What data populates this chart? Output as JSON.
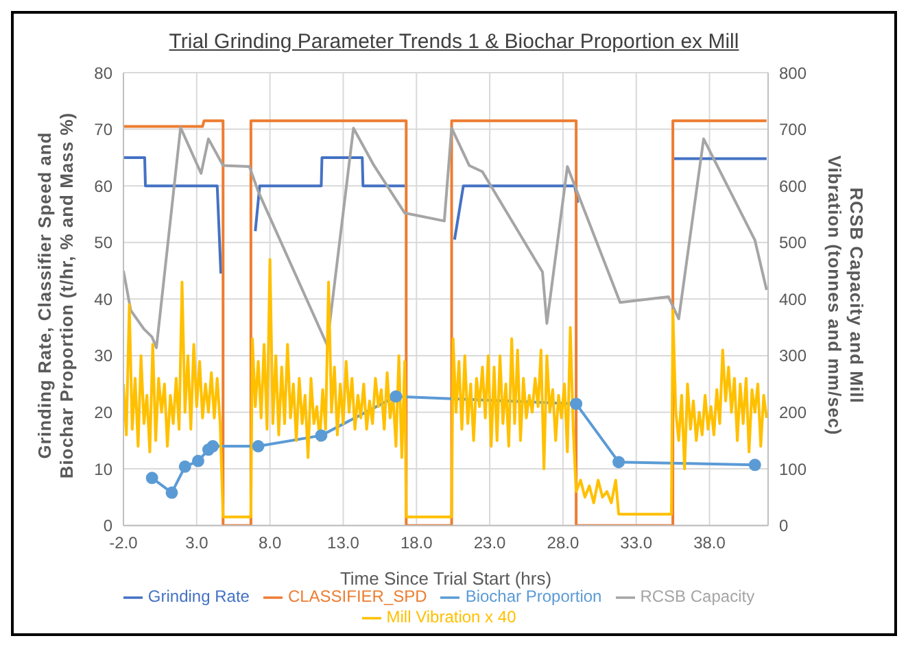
{
  "chart_data": {
    "type": "line",
    "title": "Trial Grinding Parameter Trends 1 & Biochar Proportion ex Mill",
    "xlabel": "Time Since Trial Start (hrs)",
    "ylabel": "Grinding Rate, Classifier Speed and Biochar Proportion (t/hr, % and Mass %)",
    "y2label": "RCSB Capacity and Mill Vibration (tonnes and mm/sec)",
    "xlim": [
      -2,
      42
    ],
    "xticks": [
      {
        "value": -2,
        "label": "-2.0"
      },
      {
        "value": 3,
        "label": "3.0"
      },
      {
        "value": 8,
        "label": "8.0"
      },
      {
        "value": 13,
        "label": "13.0"
      },
      {
        "value": 18,
        "label": "18.0"
      },
      {
        "value": 23,
        "label": "23.0"
      },
      {
        "value": 28,
        "label": "28.0"
      },
      {
        "value": 33,
        "label": "33.0"
      },
      {
        "value": 38,
        "label": "38.0"
      }
    ],
    "ylim": [
      0,
      80
    ],
    "yticks": [
      0,
      10,
      20,
      30,
      40,
      50,
      60,
      70,
      80
    ],
    "y2lim": [
      0,
      800
    ],
    "y2ticks": [
      0,
      100,
      200,
      300,
      400,
      500,
      600,
      700,
      800
    ],
    "grid": true,
    "legend": "bottom",
    "marker": "none",
    "line_style": "solid",
    "series": [
      {
        "name": "Grinding Rate",
        "color": "#4472c4",
        "x": [
          -2,
          -0.55,
          -0.5,
          4.4,
          4.65,
          5.8,
          7.0,
          7.3,
          11.5,
          11.55,
          14.3,
          14.35,
          17.2,
          18.8,
          20.6,
          21.2,
          28.8,
          29.0,
          32,
          35.5,
          41.9
        ],
        "values": [
          65,
          65,
          60,
          60,
          44.5,
          null,
          52,
          60,
          60,
          65,
          65,
          60,
          60,
          null,
          50.5,
          60,
          60,
          57,
          null,
          64.8,
          64.8
        ]
      },
      {
        "name": "CLASSIFIER_SPD",
        "color": "#ed7d31",
        "x": [
          -2,
          3.4,
          3.5,
          4.8,
          4.8,
          6.7,
          6.7,
          17.3,
          17.3,
          20.4,
          20.4,
          28.9,
          28.9,
          35.5,
          35.5,
          41.9
        ],
        "values": [
          70.5,
          70.5,
          71.5,
          71.5,
          0,
          0,
          71.5,
          71.5,
          0,
          0,
          71.5,
          71.5,
          0,
          0,
          71.5,
          71.5
        ]
      },
      {
        "name": "Biochar Proportion",
        "color": "#5b9bd5",
        "marker": "circle",
        "x": [
          -0.05,
          1.3,
          2.2,
          3.1,
          3.8,
          4.1,
          7.2,
          11.5,
          16.6,
          28.9,
          31.8,
          41.1
        ],
        "values": [
          8.4,
          5.8,
          10.4,
          11.4,
          13.4,
          14.0,
          14.0,
          15.9,
          22.8,
          21.5,
          11.2,
          10.7
        ]
      },
      {
        "name": "RCSB Capacity",
        "color": "#a5a5a5",
        "axis": "y2",
        "x": [
          -2,
          -1.5,
          -0.6,
          -0.05,
          0.25,
          1.9,
          3.3,
          3.8,
          4.8,
          6.6,
          7.2,
          11.9,
          13.7,
          15.1,
          17.2,
          19.9,
          20.4,
          21.6,
          22.5,
          26.6,
          26.9,
          28.3,
          31.9,
          35.2,
          35.9,
          37.6,
          41.1,
          41.9
        ],
        "values": [
          450,
          380,
          347,
          333,
          314,
          703,
          622,
          683,
          636,
          634,
          590,
          319,
          702,
          636,
          552,
          538,
          702,
          636,
          625,
          448,
          357,
          634,
          394,
          404,
          365,
          683,
          504,
          416
        ]
      },
      {
        "name": "Mill Vibration x 40",
        "color": "#ffc000",
        "axis": "y2",
        "x": [
          -2.0,
          -1.8,
          -1.6,
          -1.4,
          -1.2,
          -1.0,
          -0.8,
          -0.6,
          -0.4,
          -0.2,
          0.0,
          0.2,
          0.4,
          0.6,
          0.8,
          1.0,
          1.2,
          1.4,
          1.6,
          1.8,
          2.0,
          2.2,
          2.4,
          2.6,
          2.8,
          3.0,
          3.2,
          3.4,
          3.6,
          3.8,
          4.0,
          4.2,
          4.4,
          4.6,
          4.8,
          6.7,
          6.8,
          7.0,
          7.2,
          7.4,
          7.6,
          7.8,
          8.0,
          8.2,
          8.4,
          8.6,
          8.8,
          9.0,
          9.2,
          9.4,
          9.6,
          9.8,
          10.0,
          10.2,
          10.4,
          10.6,
          10.8,
          11.0,
          11.2,
          11.4,
          11.6,
          11.8,
          12.0,
          12.2,
          12.4,
          12.6,
          12.8,
          13.0,
          13.2,
          13.4,
          13.6,
          13.8,
          14.0,
          14.2,
          14.4,
          14.6,
          14.8,
          15.0,
          15.2,
          15.4,
          15.6,
          15.8,
          16.0,
          16.2,
          16.4,
          16.6,
          16.8,
          17.0,
          17.2,
          17.3,
          20.4,
          20.5,
          20.7,
          20.9,
          21.1,
          21.3,
          21.5,
          21.7,
          21.9,
          22.1,
          22.3,
          22.5,
          22.7,
          22.9,
          23.1,
          23.3,
          23.5,
          23.7,
          23.9,
          24.1,
          24.3,
          24.5,
          24.7,
          24.9,
          25.1,
          25.3,
          25.5,
          25.7,
          25.9,
          26.1,
          26.3,
          26.5,
          26.7,
          26.9,
          27.1,
          27.3,
          27.5,
          27.7,
          27.9,
          28.1,
          28.3,
          28.5,
          28.7,
          28.9,
          29.2,
          29.5,
          29.8,
          30.1,
          30.4,
          30.7,
          31.0,
          31.3,
          31.6,
          31.8,
          35.4,
          35.5,
          35.7,
          35.9,
          36.1,
          36.3,
          36.5,
          36.7,
          36.9,
          37.1,
          37.3,
          37.5,
          37.7,
          37.9,
          38.1,
          38.3,
          38.5,
          38.7,
          38.9,
          39.1,
          39.3,
          39.5,
          39.7,
          39.9,
          40.1,
          40.3,
          40.5,
          40.7,
          40.9,
          41.1,
          41.3,
          41.5,
          41.7,
          41.9
        ],
        "values": [
          250,
          160,
          390,
          170,
          260,
          140,
          300,
          180,
          230,
          130,
          320,
          150,
          260,
          200,
          250,
          140,
          230,
          180,
          260,
          170,
          430,
          200,
          300,
          170,
          320,
          210,
          290,
          190,
          250,
          200,
          270,
          190,
          260,
          180,
          15,
          15,
          330,
          210,
          290,
          190,
          320,
          170,
          470,
          180,
          300,
          160,
          280,
          180,
          320,
          190,
          250,
          150,
          260,
          180,
          230,
          120,
          260,
          180,
          210,
          150,
          240,
          170,
          430,
          200,
          280,
          160,
          250,
          180,
          290,
          200,
          260,
          170,
          230,
          190,
          250,
          170,
          220,
          180,
          260,
          210,
          240,
          170,
          270,
          190,
          230,
          140,
          300,
          120,
          290,
          15,
          15,
          330,
          200,
          290,
          170,
          300,
          180,
          250,
          150,
          260,
          210,
          280,
          190,
          300,
          140,
          280,
          150,
          300,
          180,
          250,
          140,
          330,
          180,
          310,
          150,
          260,
          190,
          230,
          200,
          260,
          210,
          310,
          100,
          300,
          200,
          240,
          150,
          230,
          190,
          250,
          130,
          350,
          170,
          60,
          80,
          50,
          70,
          40,
          80,
          50,
          60,
          40,
          80,
          20,
          20,
          380,
          200,
          150,
          230,
          100,
          250,
          170,
          220,
          150,
          200,
          160,
          230,
          170,
          210,
          160,
          240,
          180,
          310,
          220,
          280,
          200,
          260,
          150,
          250,
          180,
          260,
          130,
          240,
          200,
          250,
          140,
          230,
          190
        ]
      }
    ]
  }
}
